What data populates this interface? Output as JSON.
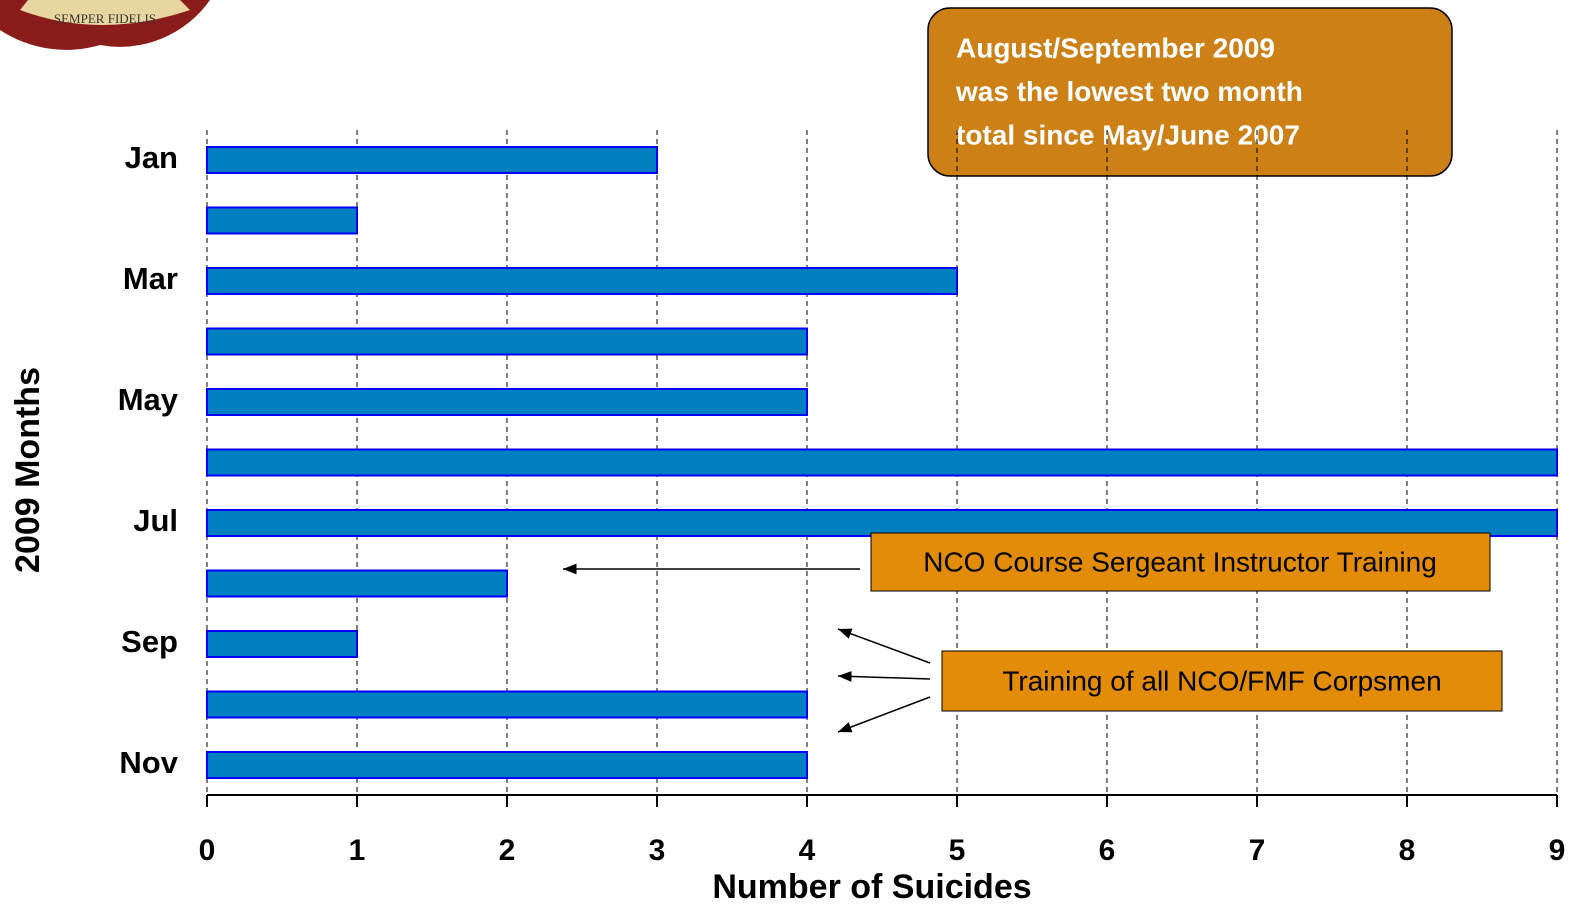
{
  "chart_data": {
    "type": "barh",
    "logo_text": "SEMPER FIDELIS",
    "xlabel": "Number of Suicides",
    "ylabel": "2009 Months",
    "categories": [
      "Jan",
      null,
      "Mar",
      null,
      "May",
      null,
      "Jul",
      null,
      "Sep",
      null,
      "Nov"
    ],
    "values": [
      3,
      1,
      5,
      4,
      4,
      9,
      9,
      2,
      1,
      4,
      4
    ],
    "color": "#0080c0",
    "edge_color": "#0000ff",
    "xlim": [
      0,
      9
    ],
    "xticks": [
      0,
      1,
      2,
      3,
      4,
      5,
      6,
      7,
      8,
      9
    ],
    "grid": true,
    "annotations": {
      "callout": [
        "August/September 2009",
        "was the lowest two month",
        "total since May/June 2007"
      ],
      "nco_course": "NCO Course Sergeant Instructor Training",
      "corpsmen": "Training of all NCO/FMF Corpsmen"
    }
  }
}
